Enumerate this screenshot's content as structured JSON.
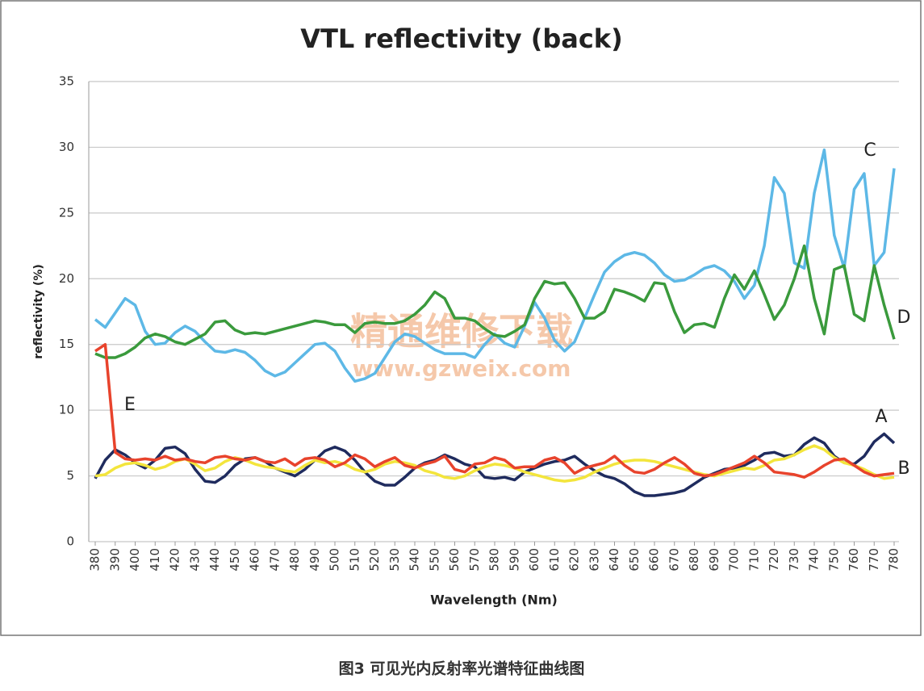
{
  "chart_data": {
    "type": "line",
    "title": "VTL reflectivity (back)",
    "x_label": "Wavelength (Nm)",
    "y_label": "reflectivity (%)",
    "caption": "图3 可见光内反射率光谱特征曲线图",
    "watermark": [
      "精通维修下载",
      "www.gzweix.com"
    ],
    "x": [
      380,
      385,
      390,
      395,
      400,
      405,
      410,
      415,
      420,
      425,
      430,
      435,
      440,
      445,
      450,
      455,
      460,
      465,
      470,
      475,
      480,
      485,
      490,
      495,
      500,
      505,
      510,
      515,
      520,
      525,
      530,
      535,
      540,
      545,
      550,
      555,
      560,
      565,
      570,
      575,
      580,
      585,
      590,
      595,
      600,
      605,
      610,
      615,
      620,
      625,
      630,
      635,
      640,
      645,
      650,
      655,
      660,
      665,
      670,
      675,
      680,
      685,
      690,
      695,
      700,
      705,
      710,
      715,
      720,
      725,
      730,
      735,
      740,
      745,
      750,
      755,
      760,
      765,
      770,
      775,
      780
    ],
    "xlim": [
      380,
      780
    ],
    "xticks": [
      380,
      390,
      400,
      410,
      420,
      430,
      440,
      450,
      460,
      470,
      480,
      490,
      500,
      510,
      520,
      530,
      540,
      550,
      560,
      570,
      580,
      590,
      600,
      610,
      620,
      630,
      640,
      650,
      660,
      670,
      680,
      690,
      700,
      710,
      720,
      730,
      740,
      750,
      760,
      770,
      780
    ],
    "ylim": [
      0,
      35
    ],
    "yticks": [
      0,
      5,
      10,
      15,
      20,
      25,
      30,
      35
    ],
    "grid": true,
    "series": [
      {
        "name": "A",
        "color": "#1f2b5e",
        "values": [
          4.8,
          6.2,
          7.0,
          6.6,
          6.0,
          5.6,
          6.2,
          7.1,
          7.2,
          6.7,
          5.5,
          4.6,
          4.5,
          5.0,
          5.8,
          6.3,
          6.4,
          6.1,
          5.6,
          5.3,
          5.0,
          5.5,
          6.2,
          6.9,
          7.2,
          6.9,
          6.2,
          5.3,
          4.6,
          4.3,
          4.3,
          4.9,
          5.6,
          6.0,
          6.2,
          6.6,
          6.3,
          5.9,
          5.7,
          4.9,
          4.8,
          4.9,
          4.7,
          5.3,
          5.6,
          5.9,
          6.1,
          6.2,
          6.5,
          5.9,
          5.4,
          5.0,
          4.8,
          4.4,
          3.8,
          3.5,
          3.5,
          3.6,
          3.7,
          3.9,
          4.4,
          4.9,
          5.2,
          5.5,
          5.6,
          5.8,
          6.2,
          6.7,
          6.8,
          6.5,
          6.6,
          7.4,
          7.9,
          7.5,
          6.5,
          6.0,
          5.9,
          6.5,
          7.6,
          8.2,
          7.5
        ]
      },
      {
        "name": "B",
        "color": "#f3e53c",
        "values": [
          5.0,
          5.1,
          5.6,
          5.9,
          6.0,
          5.8,
          5.5,
          5.7,
          6.1,
          6.3,
          5.9,
          5.4,
          5.6,
          6.1,
          6.4,
          6.2,
          5.9,
          5.7,
          5.6,
          5.4,
          5.3,
          5.8,
          6.2,
          6.0,
          6.1,
          5.9,
          5.5,
          5.3,
          5.5,
          5.9,
          6.1,
          6.0,
          5.8,
          5.4,
          5.2,
          4.9,
          4.8,
          5.0,
          5.4,
          5.7,
          5.9,
          5.8,
          5.6,
          5.3,
          5.1,
          4.9,
          4.7,
          4.6,
          4.7,
          4.9,
          5.3,
          5.6,
          5.9,
          6.1,
          6.2,
          6.2,
          6.1,
          5.9,
          5.7,
          5.5,
          5.3,
          5.1,
          5.0,
          5.2,
          5.4,
          5.6,
          5.5,
          5.8,
          6.2,
          6.3,
          6.6,
          7.0,
          7.3,
          7.0,
          6.4,
          6.0,
          5.8,
          5.5,
          5.1,
          4.8,
          4.9
        ]
      },
      {
        "name": "C",
        "color": "#5db8e6",
        "values": [
          16.9,
          16.3,
          17.4,
          18.5,
          18.0,
          16.0,
          15.0,
          15.1,
          15.9,
          16.4,
          16.0,
          15.2,
          14.5,
          14.4,
          14.6,
          14.4,
          13.8,
          13.0,
          12.6,
          12.9,
          13.6,
          14.3,
          15.0,
          15.1,
          14.5,
          13.2,
          12.2,
          12.4,
          12.8,
          14.0,
          15.2,
          15.8,
          15.6,
          15.1,
          14.6,
          14.3,
          14.3,
          14.3,
          14.0,
          15.0,
          15.8,
          15.1,
          14.8,
          16.4,
          18.2,
          17.0,
          15.3,
          14.5,
          15.2,
          17.0,
          18.8,
          20.5,
          21.3,
          21.8,
          22.0,
          21.8,
          21.2,
          20.3,
          19.8,
          19.9,
          20.3,
          20.8,
          21.0,
          20.6,
          19.8,
          18.5,
          19.5,
          22.5,
          27.7,
          26.5,
          21.2,
          20.8,
          26.5,
          29.8,
          23.3,
          20.8,
          26.8,
          28.0,
          21.0,
          22.0,
          28.4
        ]
      },
      {
        "name": "D",
        "color": "#3a9a3c",
        "values": [
          14.3,
          14.0,
          14.0,
          14.3,
          14.8,
          15.5,
          15.8,
          15.6,
          15.2,
          15.0,
          15.4,
          15.8,
          16.7,
          16.8,
          16.1,
          15.8,
          15.9,
          15.8,
          16.0,
          16.2,
          16.4,
          16.6,
          16.8,
          16.7,
          16.5,
          16.5,
          15.9,
          16.6,
          16.7,
          16.6,
          16.6,
          16.8,
          17.3,
          18.0,
          19.0,
          18.5,
          17.0,
          17.0,
          16.8,
          16.2,
          15.7,
          15.6,
          16.0,
          16.5,
          18.5,
          19.8,
          19.6,
          19.7,
          18.5,
          17.0,
          17.0,
          17.5,
          19.2,
          19.0,
          18.7,
          18.3,
          19.7,
          19.6,
          17.5,
          15.9,
          16.5,
          16.6,
          16.3,
          18.5,
          20.3,
          19.2,
          20.6,
          18.8,
          16.9,
          18.0,
          20.0,
          22.5,
          18.5,
          15.8,
          20.7,
          21.0,
          17.3,
          16.8,
          21.0,
          18.0,
          15.4
        ]
      },
      {
        "name": "E",
        "color": "#e8432c",
        "values": [
          14.5,
          15.0,
          6.8,
          6.3,
          6.2,
          6.3,
          6.2,
          6.5,
          6.2,
          6.3,
          6.1,
          6.0,
          6.4,
          6.5,
          6.3,
          6.2,
          6.4,
          6.1,
          6.0,
          6.3,
          5.8,
          6.3,
          6.4,
          6.2,
          5.7,
          6.0,
          6.6,
          6.3,
          5.7,
          6.1,
          6.4,
          5.8,
          5.6,
          5.9,
          6.1,
          6.5,
          5.5,
          5.3,
          5.9,
          6.0,
          6.4,
          6.2,
          5.6,
          5.7,
          5.7,
          6.2,
          6.4,
          6.0,
          5.2,
          5.6,
          5.8,
          6.0,
          6.5,
          5.8,
          5.3,
          5.2,
          5.5,
          6.0,
          6.4,
          5.9,
          5.2,
          5.0,
          5.1,
          5.4,
          5.7,
          6.0,
          6.5,
          6.0,
          5.3,
          5.2,
          5.1,
          4.9,
          5.3,
          5.8,
          6.2,
          6.3,
          5.8,
          5.3,
          5.0,
          5.1,
          5.2
        ]
      }
    ]
  }
}
